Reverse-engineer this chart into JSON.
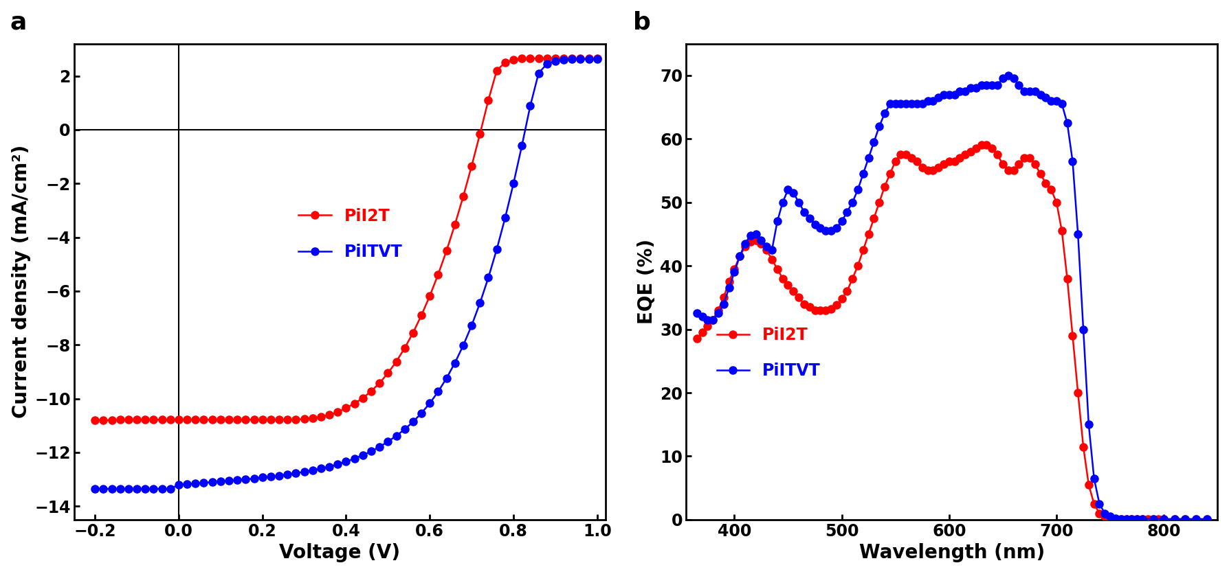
{
  "jv_red_x": [
    -0.2,
    -0.18,
    -0.16,
    -0.14,
    -0.12,
    -0.1,
    -0.08,
    -0.06,
    -0.04,
    -0.02,
    0.0,
    0.02,
    0.04,
    0.06,
    0.08,
    0.1,
    0.12,
    0.14,
    0.16,
    0.18,
    0.2,
    0.22,
    0.24,
    0.26,
    0.28,
    0.3,
    0.32,
    0.34,
    0.36,
    0.38,
    0.4,
    0.42,
    0.44,
    0.46,
    0.48,
    0.5,
    0.52,
    0.54,
    0.56,
    0.58,
    0.6,
    0.62,
    0.64,
    0.66,
    0.68,
    0.7,
    0.72,
    0.74,
    0.76,
    0.78,
    0.8,
    0.82,
    0.84,
    0.86,
    0.88,
    0.9,
    0.92,
    0.94,
    0.96,
    0.98,
    1.0
  ],
  "jv_red_y": [
    -10.8,
    -10.8,
    -10.8,
    -10.78,
    -10.78,
    -10.78,
    -10.78,
    -10.78,
    -10.78,
    -10.78,
    -10.78,
    -10.78,
    -10.78,
    -10.78,
    -10.78,
    -10.78,
    -10.78,
    -10.78,
    -10.78,
    -10.78,
    -10.78,
    -10.78,
    -10.78,
    -10.78,
    -10.78,
    -10.75,
    -10.72,
    -10.68,
    -10.6,
    -10.5,
    -10.35,
    -10.18,
    -9.98,
    -9.72,
    -9.42,
    -9.05,
    -8.62,
    -8.12,
    -7.55,
    -6.9,
    -6.18,
    -5.38,
    -4.5,
    -3.53,
    -2.48,
    -1.35,
    -0.15,
    1.1,
    2.2,
    2.5,
    2.6,
    2.65,
    2.65,
    2.65,
    2.65,
    2.65,
    2.65,
    2.65,
    2.65,
    2.65,
    2.65
  ],
  "jv_blue_x": [
    -0.2,
    -0.18,
    -0.16,
    -0.14,
    -0.12,
    -0.1,
    -0.08,
    -0.06,
    -0.04,
    -0.02,
    0.0,
    0.02,
    0.04,
    0.06,
    0.08,
    0.1,
    0.12,
    0.14,
    0.16,
    0.18,
    0.2,
    0.22,
    0.24,
    0.26,
    0.28,
    0.3,
    0.32,
    0.34,
    0.36,
    0.38,
    0.4,
    0.42,
    0.44,
    0.46,
    0.48,
    0.5,
    0.52,
    0.54,
    0.56,
    0.58,
    0.6,
    0.62,
    0.64,
    0.66,
    0.68,
    0.7,
    0.72,
    0.74,
    0.76,
    0.78,
    0.8,
    0.82,
    0.84,
    0.86,
    0.88,
    0.9,
    0.92,
    0.94,
    0.96,
    0.98,
    1.0
  ],
  "jv_blue_y": [
    -13.35,
    -13.35,
    -13.35,
    -13.35,
    -13.35,
    -13.35,
    -13.35,
    -13.35,
    -13.35,
    -13.35,
    -13.2,
    -13.18,
    -13.15,
    -13.13,
    -13.1,
    -13.08,
    -13.05,
    -13.02,
    -13.0,
    -12.97,
    -12.93,
    -12.9,
    -12.86,
    -12.82,
    -12.77,
    -12.72,
    -12.67,
    -12.6,
    -12.53,
    -12.44,
    -12.34,
    -12.23,
    -12.1,
    -11.96,
    -11.79,
    -11.6,
    -11.38,
    -11.14,
    -10.86,
    -10.54,
    -10.17,
    -9.74,
    -9.24,
    -8.67,
    -8.02,
    -7.28,
    -6.44,
    -5.5,
    -4.45,
    -3.28,
    -2.0,
    -0.6,
    0.88,
    2.1,
    2.45,
    2.55,
    2.6,
    2.62,
    2.62,
    2.62,
    2.62
  ],
  "eqe_red_x": [
    365,
    370,
    375,
    380,
    385,
    390,
    395,
    400,
    405,
    410,
    415,
    420,
    425,
    430,
    435,
    440,
    445,
    450,
    455,
    460,
    465,
    470,
    475,
    480,
    485,
    490,
    495,
    500,
    505,
    510,
    515,
    520,
    525,
    530,
    535,
    540,
    545,
    550,
    555,
    560,
    565,
    570,
    575,
    580,
    585,
    590,
    595,
    600,
    605,
    610,
    615,
    620,
    625,
    630,
    635,
    640,
    645,
    650,
    655,
    660,
    665,
    670,
    675,
    680,
    685,
    690,
    695,
    700,
    705,
    710,
    715,
    720,
    725,
    730,
    735,
    740,
    745,
    750,
    755,
    760,
    765,
    770,
    775,
    780,
    785,
    790,
    795,
    800,
    810,
    820,
    830,
    840
  ],
  "eqe_red_y": [
    28.5,
    29.5,
    30.5,
    31.5,
    33.0,
    35.0,
    37.5,
    39.5,
    41.5,
    43.0,
    43.8,
    44.0,
    43.5,
    42.5,
    41.0,
    39.5,
    38.0,
    37.0,
    36.0,
    35.0,
    34.0,
    33.5,
    33.0,
    33.0,
    33.0,
    33.2,
    33.8,
    34.8,
    36.0,
    38.0,
    40.0,
    42.5,
    45.0,
    47.5,
    50.0,
    52.5,
    54.5,
    56.5,
    57.5,
    57.5,
    57.0,
    56.5,
    55.5,
    55.0,
    55.0,
    55.5,
    56.0,
    56.5,
    56.5,
    57.0,
    57.5,
    58.0,
    58.5,
    59.0,
    59.0,
    58.5,
    57.5,
    56.0,
    55.0,
    55.0,
    56.0,
    57.0,
    57.0,
    56.0,
    54.5,
    53.0,
    52.0,
    50.0,
    45.5,
    38.0,
    29.0,
    20.0,
    11.5,
    5.5,
    2.5,
    1.0,
    0.5,
    0.2,
    0.1,
    0.1,
    0.1,
    0.1,
    0.1,
    0.1,
    0.1,
    0.1,
    0.1,
    0.1,
    0.1,
    0.1,
    0.1,
    0.1
  ],
  "eqe_blue_x": [
    365,
    370,
    375,
    380,
    385,
    390,
    395,
    400,
    405,
    410,
    415,
    420,
    425,
    430,
    435,
    440,
    445,
    450,
    455,
    460,
    465,
    470,
    475,
    480,
    485,
    490,
    495,
    500,
    505,
    510,
    515,
    520,
    525,
    530,
    535,
    540,
    545,
    550,
    555,
    560,
    565,
    570,
    575,
    580,
    585,
    590,
    595,
    600,
    605,
    610,
    615,
    620,
    625,
    630,
    635,
    640,
    645,
    650,
    655,
    660,
    665,
    670,
    675,
    680,
    685,
    690,
    695,
    700,
    705,
    710,
    715,
    720,
    725,
    730,
    735,
    740,
    745,
    750,
    755,
    760,
    765,
    770,
    775,
    780,
    790,
    800,
    810,
    820,
    830,
    840
  ],
  "eqe_blue_y": [
    32.5,
    32.0,
    31.5,
    31.5,
    32.5,
    34.0,
    36.5,
    39.0,
    41.5,
    43.5,
    44.8,
    45.0,
    44.0,
    43.0,
    42.5,
    47.0,
    50.0,
    52.0,
    51.5,
    50.0,
    48.5,
    47.5,
    46.5,
    46.0,
    45.5,
    45.5,
    46.0,
    47.0,
    48.5,
    50.0,
    52.0,
    54.5,
    57.0,
    59.5,
    62.0,
    64.0,
    65.5,
    65.5,
    65.5,
    65.5,
    65.5,
    65.5,
    65.5,
    66.0,
    66.0,
    66.5,
    67.0,
    67.0,
    67.0,
    67.5,
    67.5,
    68.0,
    68.0,
    68.5,
    68.5,
    68.5,
    68.5,
    69.5,
    70.0,
    69.5,
    68.5,
    67.5,
    67.5,
    67.5,
    67.0,
    66.5,
    66.0,
    66.0,
    65.5,
    62.5,
    56.5,
    45.0,
    30.0,
    15.0,
    6.5,
    2.5,
    1.0,
    0.5,
    0.2,
    0.1,
    0.1,
    0.1,
    0.1,
    0.1,
    0.1,
    0.1,
    0.1,
    0.1,
    0.1,
    0.1
  ],
  "red_color": "#FF0000",
  "blue_color": "#0000FF",
  "marker_size": 8,
  "line_width": 1.8,
  "jv_xlim": [
    -0.25,
    1.02
  ],
  "jv_ylim": [
    -14.5,
    3.2
  ],
  "jv_xticks": [
    -0.2,
    0.0,
    0.2,
    0.4,
    0.6,
    0.8,
    1.0
  ],
  "jv_yticks": [
    -14,
    -12,
    -10,
    -8,
    -6,
    -4,
    -2,
    0,
    2
  ],
  "eqe_xlim": [
    355,
    850
  ],
  "eqe_ylim": [
    0,
    75
  ],
  "eqe_xticks": [
    400,
    500,
    600,
    700,
    800
  ],
  "eqe_yticks": [
    0,
    10,
    20,
    30,
    40,
    50,
    60,
    70
  ],
  "xlabel_jv": "Voltage (V)",
  "ylabel_jv": "Current density (mA/cm²)",
  "xlabel_eqe": "Wavelength (nm)",
  "ylabel_eqe": "EQE (%)",
  "label_red": "PiI2T",
  "label_blue": "PiITVT",
  "panel_a": "a",
  "panel_b": "b",
  "tick_fontsize": 17,
  "label_fontsize": 20,
  "legend_fontsize": 17,
  "panel_label_fontsize": 26
}
